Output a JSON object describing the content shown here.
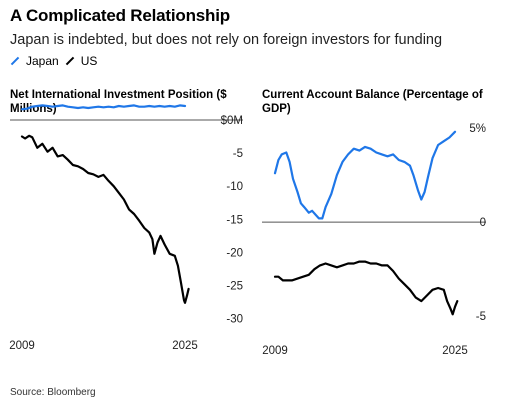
{
  "header": {
    "title": "A Complicated Relationship",
    "subtitle": "Japan is indebted, but does not rely on foreign investors for funding"
  },
  "legend": [
    {
      "name": "Japan",
      "color": "#1f77e8"
    },
    {
      "name": "US",
      "color": "#000000"
    }
  ],
  "source": "Source: Bloomberg",
  "chart_data": [
    {
      "type": "line",
      "title": "Net International Investment Position ($ Millions)",
      "x_range": [
        2009,
        2025
      ],
      "xticks": [
        "2009",
        "2025"
      ],
      "y_range": [
        -32,
        1.5
      ],
      "yticks": [
        {
          "value": 0,
          "label": "$0M"
        },
        {
          "value": -5,
          "label": "-5"
        },
        {
          "value": -10,
          "label": "-10"
        },
        {
          "value": -15,
          "label": "-15"
        },
        {
          "value": -20,
          "label": "-20"
        },
        {
          "value": -25,
          "label": "-25"
        },
        {
          "value": -30,
          "label": "-30"
        }
      ],
      "series": [
        {
          "name": "Japan",
          "color": "#1f77e8",
          "points": [
            [
              2009.0,
              1.6
            ],
            [
              2009.5,
              1.7
            ],
            [
              2010.0,
              2.0
            ],
            [
              2010.5,
              2.1
            ],
            [
              2011.0,
              2.2
            ],
            [
              2011.5,
              2.1
            ],
            [
              2012.0,
              2.0
            ],
            [
              2012.5,
              2.1
            ],
            [
              2013.0,
              2.2
            ],
            [
              2013.5,
              2.0
            ],
            [
              2014.0,
              1.9
            ],
            [
              2014.5,
              1.8
            ],
            [
              2015.0,
              1.9
            ],
            [
              2015.5,
              1.8
            ],
            [
              2016.0,
              1.9
            ],
            [
              2016.5,
              2.0
            ],
            [
              2017.0,
              1.9
            ],
            [
              2017.5,
              2.0
            ],
            [
              2018.0,
              1.9
            ],
            [
              2018.5,
              2.1
            ],
            [
              2019.0,
              2.0
            ],
            [
              2019.5,
              2.1
            ],
            [
              2020.0,
              2.2
            ],
            [
              2020.5,
              2.0
            ],
            [
              2021.0,
              2.0
            ],
            [
              2021.5,
              2.1
            ],
            [
              2022.0,
              2.0
            ],
            [
              2022.5,
              2.1
            ],
            [
              2023.0,
              2.0
            ],
            [
              2023.5,
              2.1
            ],
            [
              2024.0,
              2.0
            ],
            [
              2024.5,
              2.2
            ],
            [
              2025.0,
              2.1
            ]
          ]
        },
        {
          "name": "US",
          "color": "#000000",
          "points": [
            [
              2009.0,
              -2.5
            ],
            [
              2009.3,
              -2.8
            ],
            [
              2009.7,
              -2.4
            ],
            [
              2010.0,
              -2.6
            ],
            [
              2010.5,
              -4.2
            ],
            [
              2011.0,
              -3.6
            ],
            [
              2011.5,
              -4.8
            ],
            [
              2012.0,
              -4.2
            ],
            [
              2012.5,
              -5.5
            ],
            [
              2013.0,
              -5.3
            ],
            [
              2013.5,
              -6.0
            ],
            [
              2014.0,
              -6.8
            ],
            [
              2014.5,
              -7.0
            ],
            [
              2015.0,
              -7.4
            ],
            [
              2015.5,
              -8.0
            ],
            [
              2016.0,
              -8.2
            ],
            [
              2016.5,
              -8.6
            ],
            [
              2017.0,
              -8.3
            ],
            [
              2017.5,
              -9.2
            ],
            [
              2018.0,
              -10.0
            ],
            [
              2018.5,
              -11.0
            ],
            [
              2019.0,
              -12.0
            ],
            [
              2019.5,
              -13.5
            ],
            [
              2020.0,
              -14.2
            ],
            [
              2020.5,
              -15.2
            ],
            [
              2021.0,
              -16.3
            ],
            [
              2021.5,
              -17.0
            ],
            [
              2021.8,
              -18.0
            ],
            [
              2022.0,
              -20.2
            ],
            [
              2022.3,
              -18.5
            ],
            [
              2022.6,
              -17.5
            ],
            [
              2023.0,
              -18.8
            ],
            [
              2023.5,
              -20.2
            ],
            [
              2024.0,
              -20.5
            ],
            [
              2024.3,
              -22.0
            ],
            [
              2024.6,
              -24.5
            ],
            [
              2024.9,
              -27.2
            ],
            [
              2025.0,
              -27.6
            ],
            [
              2025.2,
              -26.5
            ],
            [
              2025.35,
              -25.5
            ]
          ]
        }
      ]
    },
    {
      "type": "line",
      "title": "Current Account Balance (Percentage of GDP)",
      "x_range": [
        2009,
        2025
      ],
      "xticks": [
        "2009",
        "2025"
      ],
      "y_range": [
        -6,
        5.8
      ],
      "yticks": [
        {
          "value": 5,
          "label": "5%"
        },
        {
          "value": 0,
          "label": "0"
        },
        {
          "value": -5,
          "label": "-5"
        }
      ],
      "series": [
        {
          "name": "Japan",
          "color": "#1f77e8",
          "points": [
            [
              2009.0,
              2.6
            ],
            [
              2009.3,
              3.3
            ],
            [
              2009.6,
              3.6
            ],
            [
              2010.0,
              3.7
            ],
            [
              2010.3,
              3.2
            ],
            [
              2010.6,
              2.3
            ],
            [
              2011.0,
              1.6
            ],
            [
              2011.3,
              1.0
            ],
            [
              2011.6,
              0.8
            ],
            [
              2012.0,
              0.5
            ],
            [
              2012.3,
              0.6
            ],
            [
              2012.6,
              0.4
            ],
            [
              2012.9,
              0.2
            ],
            [
              2013.2,
              0.2
            ],
            [
              2013.5,
              0.8
            ],
            [
              2014.0,
              1.5
            ],
            [
              2014.5,
              2.5
            ],
            [
              2015.0,
              3.2
            ],
            [
              2015.5,
              3.6
            ],
            [
              2016.0,
              3.9
            ],
            [
              2016.5,
              3.8
            ],
            [
              2017.0,
              4.0
            ],
            [
              2017.5,
              3.9
            ],
            [
              2018.0,
              3.7
            ],
            [
              2018.5,
              3.6
            ],
            [
              2019.0,
              3.5
            ],
            [
              2019.5,
              3.6
            ],
            [
              2020.0,
              3.3
            ],
            [
              2020.5,
              3.2
            ],
            [
              2021.0,
              3.0
            ],
            [
              2021.3,
              2.5
            ],
            [
              2021.7,
              1.7
            ],
            [
              2022.0,
              1.2
            ],
            [
              2022.3,
              1.6
            ],
            [
              2022.6,
              2.4
            ],
            [
              2023.0,
              3.4
            ],
            [
              2023.5,
              4.1
            ],
            [
              2024.0,
              4.3
            ],
            [
              2024.5,
              4.5
            ],
            [
              2025.0,
              4.8
            ]
          ]
        },
        {
          "name": "US",
          "color": "#000000",
          "points": [
            [
              2009.0,
              -2.9
            ],
            [
              2009.3,
              -2.9
            ],
            [
              2009.7,
              -3.1
            ],
            [
              2010.0,
              -3.1
            ],
            [
              2010.5,
              -3.1
            ],
            [
              2011.0,
              -3.0
            ],
            [
              2011.5,
              -2.9
            ],
            [
              2012.0,
              -2.8
            ],
            [
              2012.5,
              -2.5
            ],
            [
              2013.0,
              -2.3
            ],
            [
              2013.5,
              -2.2
            ],
            [
              2014.0,
              -2.3
            ],
            [
              2014.5,
              -2.4
            ],
            [
              2015.0,
              -2.3
            ],
            [
              2015.5,
              -2.2
            ],
            [
              2016.0,
              -2.2
            ],
            [
              2016.5,
              -2.1
            ],
            [
              2017.0,
              -2.1
            ],
            [
              2017.5,
              -2.2
            ],
            [
              2018.0,
              -2.2
            ],
            [
              2018.5,
              -2.3
            ],
            [
              2019.0,
              -2.3
            ],
            [
              2019.5,
              -2.6
            ],
            [
              2020.0,
              -3.0
            ],
            [
              2020.5,
              -3.3
            ],
            [
              2021.0,
              -3.6
            ],
            [
              2021.5,
              -4.0
            ],
            [
              2022.0,
              -4.2
            ],
            [
              2022.5,
              -3.9
            ],
            [
              2023.0,
              -3.6
            ],
            [
              2023.5,
              -3.5
            ],
            [
              2024.0,
              -3.6
            ],
            [
              2024.3,
              -4.2
            ],
            [
              2024.6,
              -4.6
            ],
            [
              2024.8,
              -4.9
            ],
            [
              2025.0,
              -4.5
            ],
            [
              2025.2,
              -4.2
            ]
          ]
        }
      ]
    }
  ]
}
